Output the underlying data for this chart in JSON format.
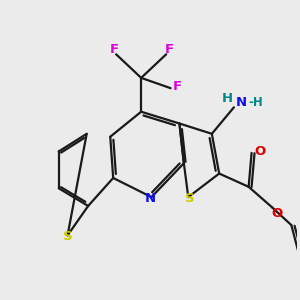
{
  "bg_color": "#ebebeb",
  "bond_color": "#1a1a1a",
  "bond_width": 1.6,
  "figsize": [
    3.0,
    3.0
  ],
  "dpi": 100,
  "colors": {
    "N": "#1010ee",
    "S": "#cccc00",
    "O": "#dd0000",
    "F": "#dd00dd",
    "NH_teal": "#008888",
    "NH2_blue": "#1010ee"
  }
}
